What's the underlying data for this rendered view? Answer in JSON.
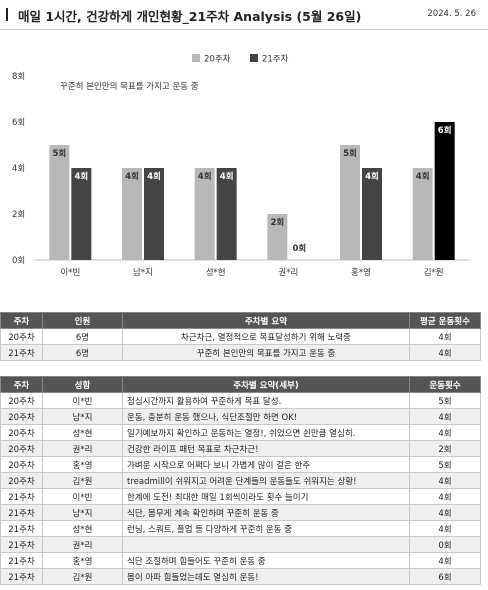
{
  "header": {
    "title": "매일 1시간, 건강하게 개인현황_21주차 Analysis (5월 26일)",
    "date": "2024. 5. 26"
  },
  "chart_data": {
    "type": "bar",
    "subtitle": "꾸준히 본인만의 목표를 가지고 운동 중",
    "categories": [
      "이*빈",
      "남*지",
      "성*현",
      "권*리",
      "홍*영",
      "김*원"
    ],
    "series": [
      {
        "name": "20주차",
        "values": [
          5,
          4,
          4,
          2,
          5,
          4
        ],
        "labels": [
          "5회",
          "4회",
          "4회",
          "2회",
          "5회",
          "4회"
        ],
        "color": "#b8b8b8"
      },
      {
        "name": "21주차",
        "values": [
          4,
          4,
          4,
          0,
          4,
          6
        ],
        "labels": [
          "4회",
          "4회",
          "4회",
          "0회",
          "4회",
          "6회"
        ],
        "color": "#444444",
        "highlight_color": "#000000"
      }
    ],
    "y_ticks": [
      "0회",
      "2회",
      "4회",
      "6회",
      "8회"
    ],
    "ylim": [
      0,
      8
    ],
    "legend_position": "top-center"
  },
  "summary_table": {
    "headers": [
      "주차",
      "인원",
      "주차별 요약",
      "평균 운동횟수"
    ],
    "rows": [
      [
        "20주차",
        "6명",
        "차근차근, 열정적으로 목표달성하기 위해 노력중",
        "4회"
      ],
      [
        "21주차",
        "6명",
        "꾸준히 본인만의 목표를 가지고 운동 중",
        "4회"
      ]
    ]
  },
  "detail_table": {
    "headers": [
      "주차",
      "성함",
      "주차별 요약(세부)",
      "운동횟수"
    ],
    "rows": [
      [
        "20주차",
        "이*빈",
        "점심시간까지 활용하여 꾸준하게 목표 달성.",
        "5회"
      ],
      [
        "20주차",
        "남*지",
        "운동, 충분히 운동 했으나, 식단조절만 하면 OK!",
        "4회"
      ],
      [
        "20주차",
        "성*현",
        "일기예보까지 확인하고 운동하는 열정!, 쉬었으면 쉰만큼 열심히.",
        "4회"
      ],
      [
        "20주차",
        "권*리",
        "건강한 라이프 패턴 목표로 차근차근!",
        "2회"
      ],
      [
        "20주차",
        "홍*영",
        "가벼운 시작으로 어쩌다 보니 가볍게 많이 걸은 한주",
        "5회"
      ],
      [
        "20주차",
        "김*원",
        "treadmill이 쉬워지고 어려운 단계들의 운동들도 쉬워지는 상황!",
        "4회"
      ],
      [
        "21주차",
        "이*빈",
        "한계에 도전! 최대한 매일 1회씩이라도 횟수 늘이기",
        "4회"
      ],
      [
        "21주차",
        "남*지",
        "식단, 몸무게 계속 확인하며 꾸준히 운동 중",
        "4회"
      ],
      [
        "21주차",
        "성*현",
        "런닝, 스쿼트, 플업 등 다양하게 꾸준히 운동 중",
        "4회"
      ],
      [
        "21주차",
        "권*리",
        "",
        "0회"
      ],
      [
        "21주차",
        "홍*영",
        "식단 조절하며 힘들어도 꾸준히 운동 중",
        "4회"
      ],
      [
        "21주차",
        "김*원",
        "몸이 아파 힘들었는데도 열심히 운동!",
        "6회"
      ]
    ]
  }
}
